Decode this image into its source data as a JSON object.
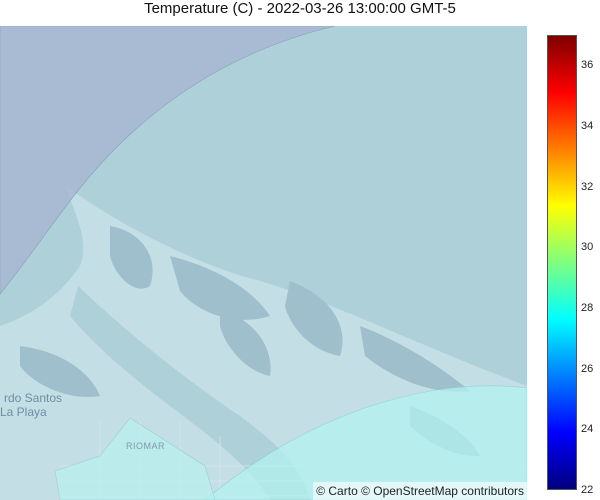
{
  "title": "Temperature (C) - 2022-03-26 13:00:00 GMT-5",
  "map": {
    "labels": {
      "city": [
        "rdo Santos",
        "La Playa"
      ],
      "district": "RIOMAR"
    },
    "attribution": "© Carto © OpenStreetMap contributors",
    "colors": {
      "water": "#aed0d8",
      "land": "#c7dfe8",
      "zone_north": "#a9b8d2",
      "zone_south": "#b3f4f0",
      "wetland": "#9fbfcc"
    }
  },
  "colorbar": {
    "ticks": [
      "36",
      "34",
      "32",
      "30",
      "28",
      "26",
      "24",
      "22"
    ],
    "range": [
      22,
      37
    ],
    "colorscale": "jet",
    "colorscale_stops": [
      "#00007f",
      "#0000ff",
      "#007fff",
      "#00ffff",
      "#7fff7f",
      "#ffff00",
      "#ff7f00",
      "#ff0000",
      "#7f0000"
    ]
  }
}
